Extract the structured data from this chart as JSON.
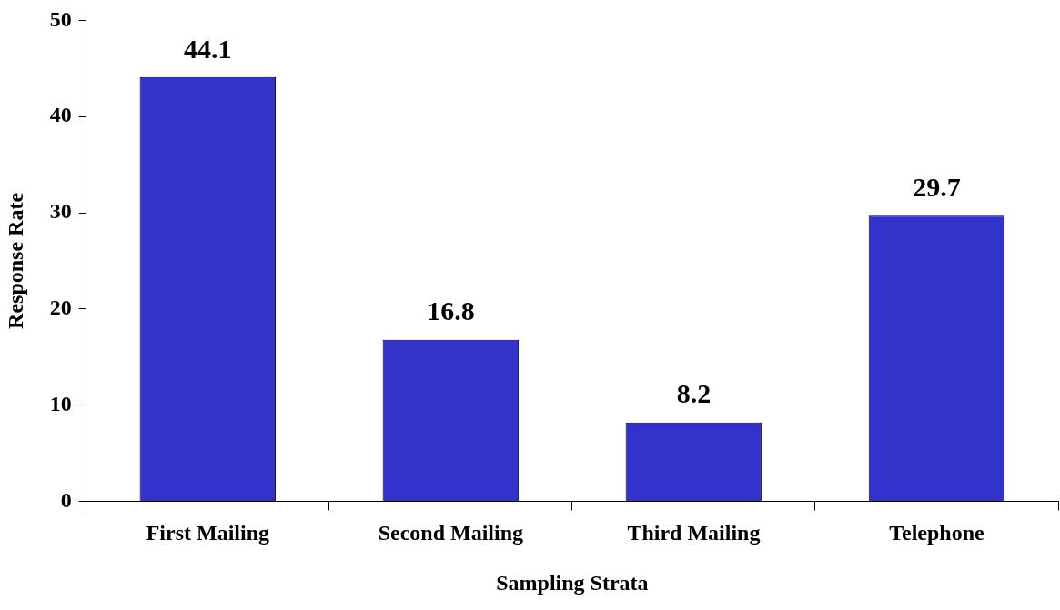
{
  "chart_data": {
    "type": "bar",
    "xlabel": "Sampling Strata",
    "ylabel": "Response Rate",
    "categories": [
      "First Mailing",
      "Second Mailing",
      "Third Mailing",
      "Telephone"
    ],
    "values": [
      44.1,
      16.8,
      8.2,
      29.7
    ],
    "color": "#3333cc",
    "ylim": [
      0,
      50
    ],
    "yticks": [
      0,
      10,
      20,
      30,
      40,
      50
    ],
    "grid": false,
    "legend": false,
    "data_labels": true
  }
}
